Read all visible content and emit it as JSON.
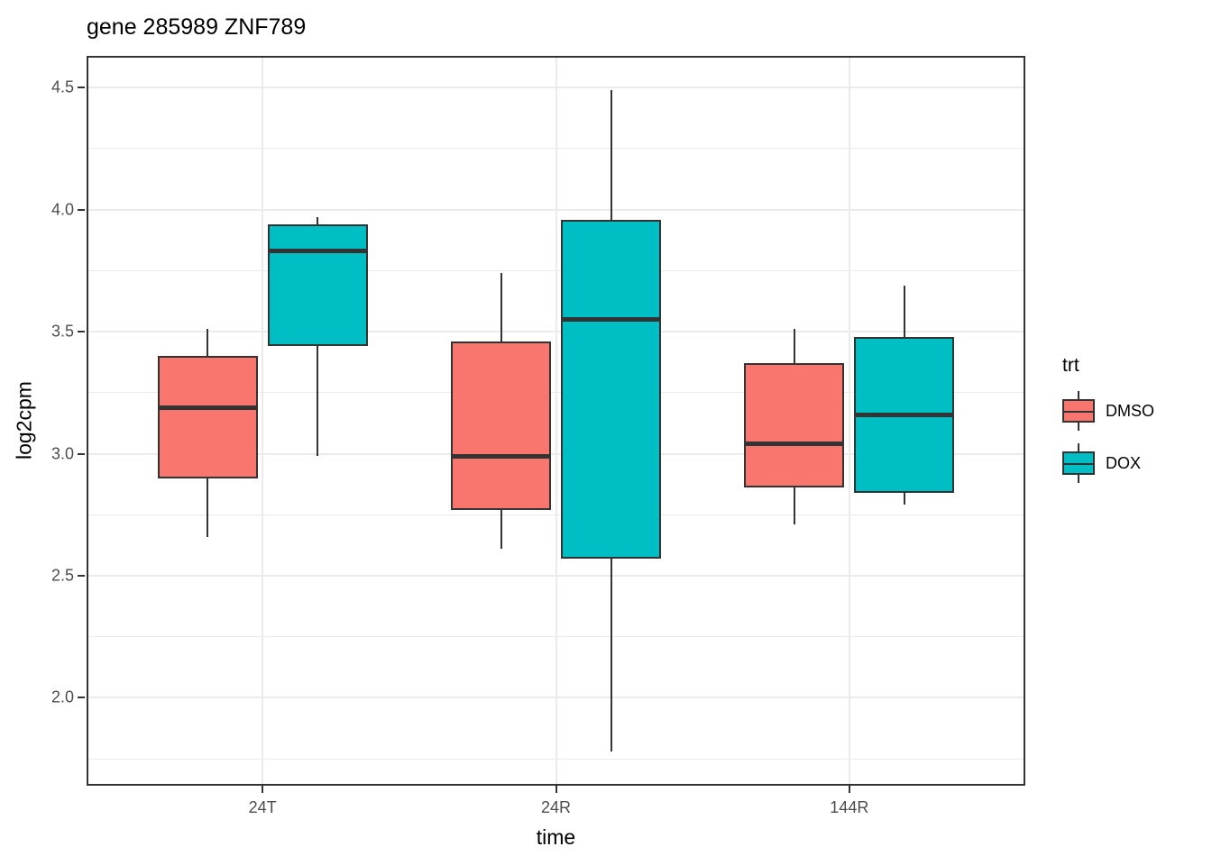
{
  "chart_data": {
    "type": "boxplot",
    "title": "gene 285989 ZNF789",
    "xlabel": "time",
    "ylabel": "log2cpm",
    "categories": [
      "24T",
      "24R",
      "144R"
    ],
    "ylim": [
      1.64,
      4.63
    ],
    "yticks": [
      2.0,
      2.5,
      3.0,
      3.5,
      4.0,
      4.5
    ],
    "ytick_labels": [
      "2.0",
      "2.5",
      "3.0",
      "3.5",
      "4.0",
      "4.5"
    ],
    "grid": {
      "major": true,
      "minor": true,
      "vertical_at_categories": true
    },
    "legend": {
      "title": "trt",
      "position": "right",
      "entries": [
        {
          "label": "DMSO",
          "color": "#F8766D"
        },
        {
          "label": "DOX",
          "color": "#00BFC4"
        }
      ]
    },
    "series": [
      {
        "name": "DMSO",
        "color": "#F8766D",
        "boxes": [
          {
            "category": "24T",
            "min": 2.66,
            "q1": 2.9,
            "median": 3.19,
            "q3": 3.4,
            "max": 3.51
          },
          {
            "category": "24R",
            "min": 2.61,
            "q1": 2.77,
            "median": 2.99,
            "q3": 3.46,
            "max": 3.74
          },
          {
            "category": "144R",
            "min": 2.71,
            "q1": 2.86,
            "median": 3.04,
            "q3": 3.37,
            "max": 3.51
          }
        ]
      },
      {
        "name": "DOX",
        "color": "#00BFC4",
        "boxes": [
          {
            "category": "24T",
            "min": 2.99,
            "q1": 3.44,
            "median": 3.83,
            "q3": 3.94,
            "max": 3.97
          },
          {
            "category": "24R",
            "min": 1.78,
            "q1": 2.57,
            "median": 3.55,
            "q3": 3.96,
            "max": 4.49
          },
          {
            "category": "144R",
            "min": 2.79,
            "q1": 2.84,
            "median": 3.16,
            "q3": 3.48,
            "max": 3.69
          }
        ]
      }
    ],
    "style": {
      "line_color": "#333333",
      "gridline_color": "#ebebeb",
      "tick_label_color": "#4d4d4d",
      "panel_background": "#ffffff"
    }
  }
}
